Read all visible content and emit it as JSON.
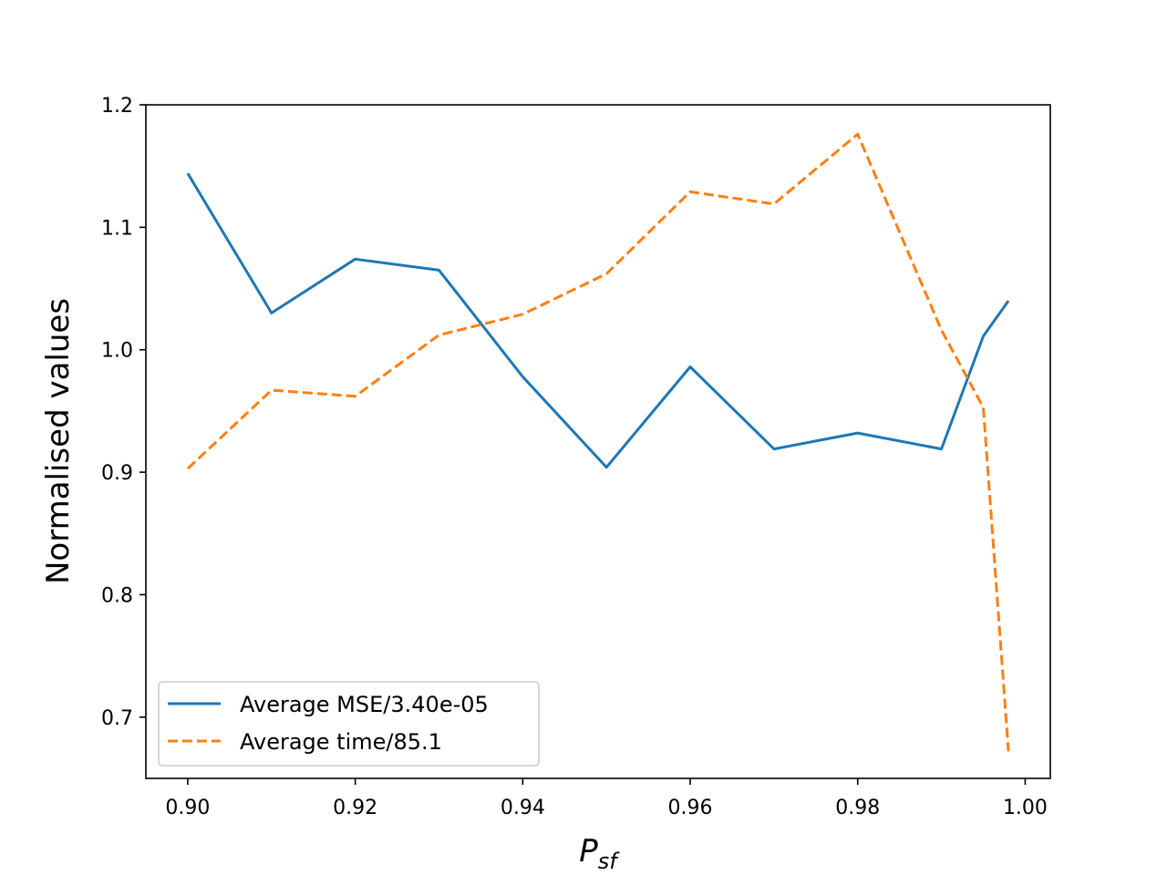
{
  "chart_data": {
    "type": "line",
    "title": "",
    "xlabel_main": "P",
    "xlabel_sub": "sf",
    "ylabel": "Normalised values",
    "xlim": [
      0.895,
      1.003
    ],
    "ylim": [
      0.65,
      1.2
    ],
    "grid": false,
    "legend_position": "lower-left",
    "x_ticks": [
      0.9,
      0.92,
      0.94,
      0.96,
      0.98,
      1.0
    ],
    "x_tick_labels": [
      "0.90",
      "0.92",
      "0.94",
      "0.96",
      "0.98",
      "1.00"
    ],
    "y_ticks": [
      0.7,
      0.8,
      0.9,
      1.0,
      1.1,
      1.2
    ],
    "y_tick_labels": [
      "0.7",
      "0.8",
      "0.9",
      "1.0",
      "1.1",
      "1.2"
    ],
    "x": [
      0.9,
      0.91,
      0.92,
      0.93,
      0.94,
      0.95,
      0.96,
      0.97,
      0.98,
      0.99,
      0.995,
      0.998
    ],
    "series": [
      {
        "name": "Average MSE/3.40e-05",
        "color": "#1f77b4",
        "dash": "solid",
        "values": [
          1.144,
          1.03,
          1.074,
          1.065,
          0.978,
          0.904,
          0.986,
          0.919,
          0.932,
          0.919,
          1.011,
          1.04
        ]
      },
      {
        "name": "Average time/85.1",
        "color": "#ff7f0e",
        "dash": "dashed",
        "values": [
          0.903,
          0.967,
          0.962,
          1.012,
          1.029,
          1.062,
          1.129,
          1.119,
          1.176,
          1.016,
          0.953,
          0.672
        ]
      }
    ]
  }
}
